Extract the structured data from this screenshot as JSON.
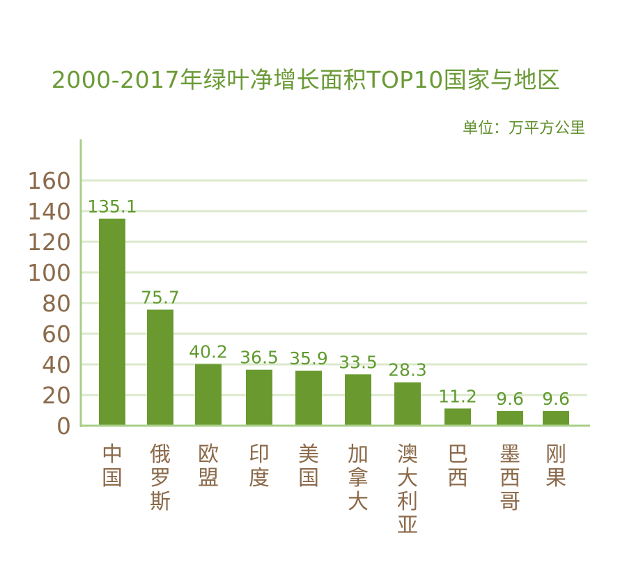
{
  "chart_data": {
    "type": "bar",
    "title": "2000-2017年绿叶净增长面积TOP10国家与地区",
    "unit": "单位：万平方公里",
    "categories": [
      "中国",
      "俄罗斯",
      "欧盟",
      "印度",
      "美国",
      "加拿大",
      "澳大利亚",
      "巴西",
      "墨西哥",
      "刚果"
    ],
    "values": [
      135.1,
      75.7,
      40.2,
      36.5,
      35.9,
      33.5,
      28.3,
      11.2,
      9.6,
      9.6
    ],
    "ylim": [
      0,
      160
    ],
    "yticks": [
      0,
      20,
      40,
      60,
      80,
      100,
      120,
      140,
      160
    ],
    "grid": true,
    "legend": "none",
    "colors": {
      "bar": "#6a9a2f",
      "axis": "#a9ce88",
      "grid": "#dbe9cc",
      "value_label": "#5f9a2e",
      "tick_label": "#8b6a4a",
      "title": "#6a9a35"
    }
  }
}
